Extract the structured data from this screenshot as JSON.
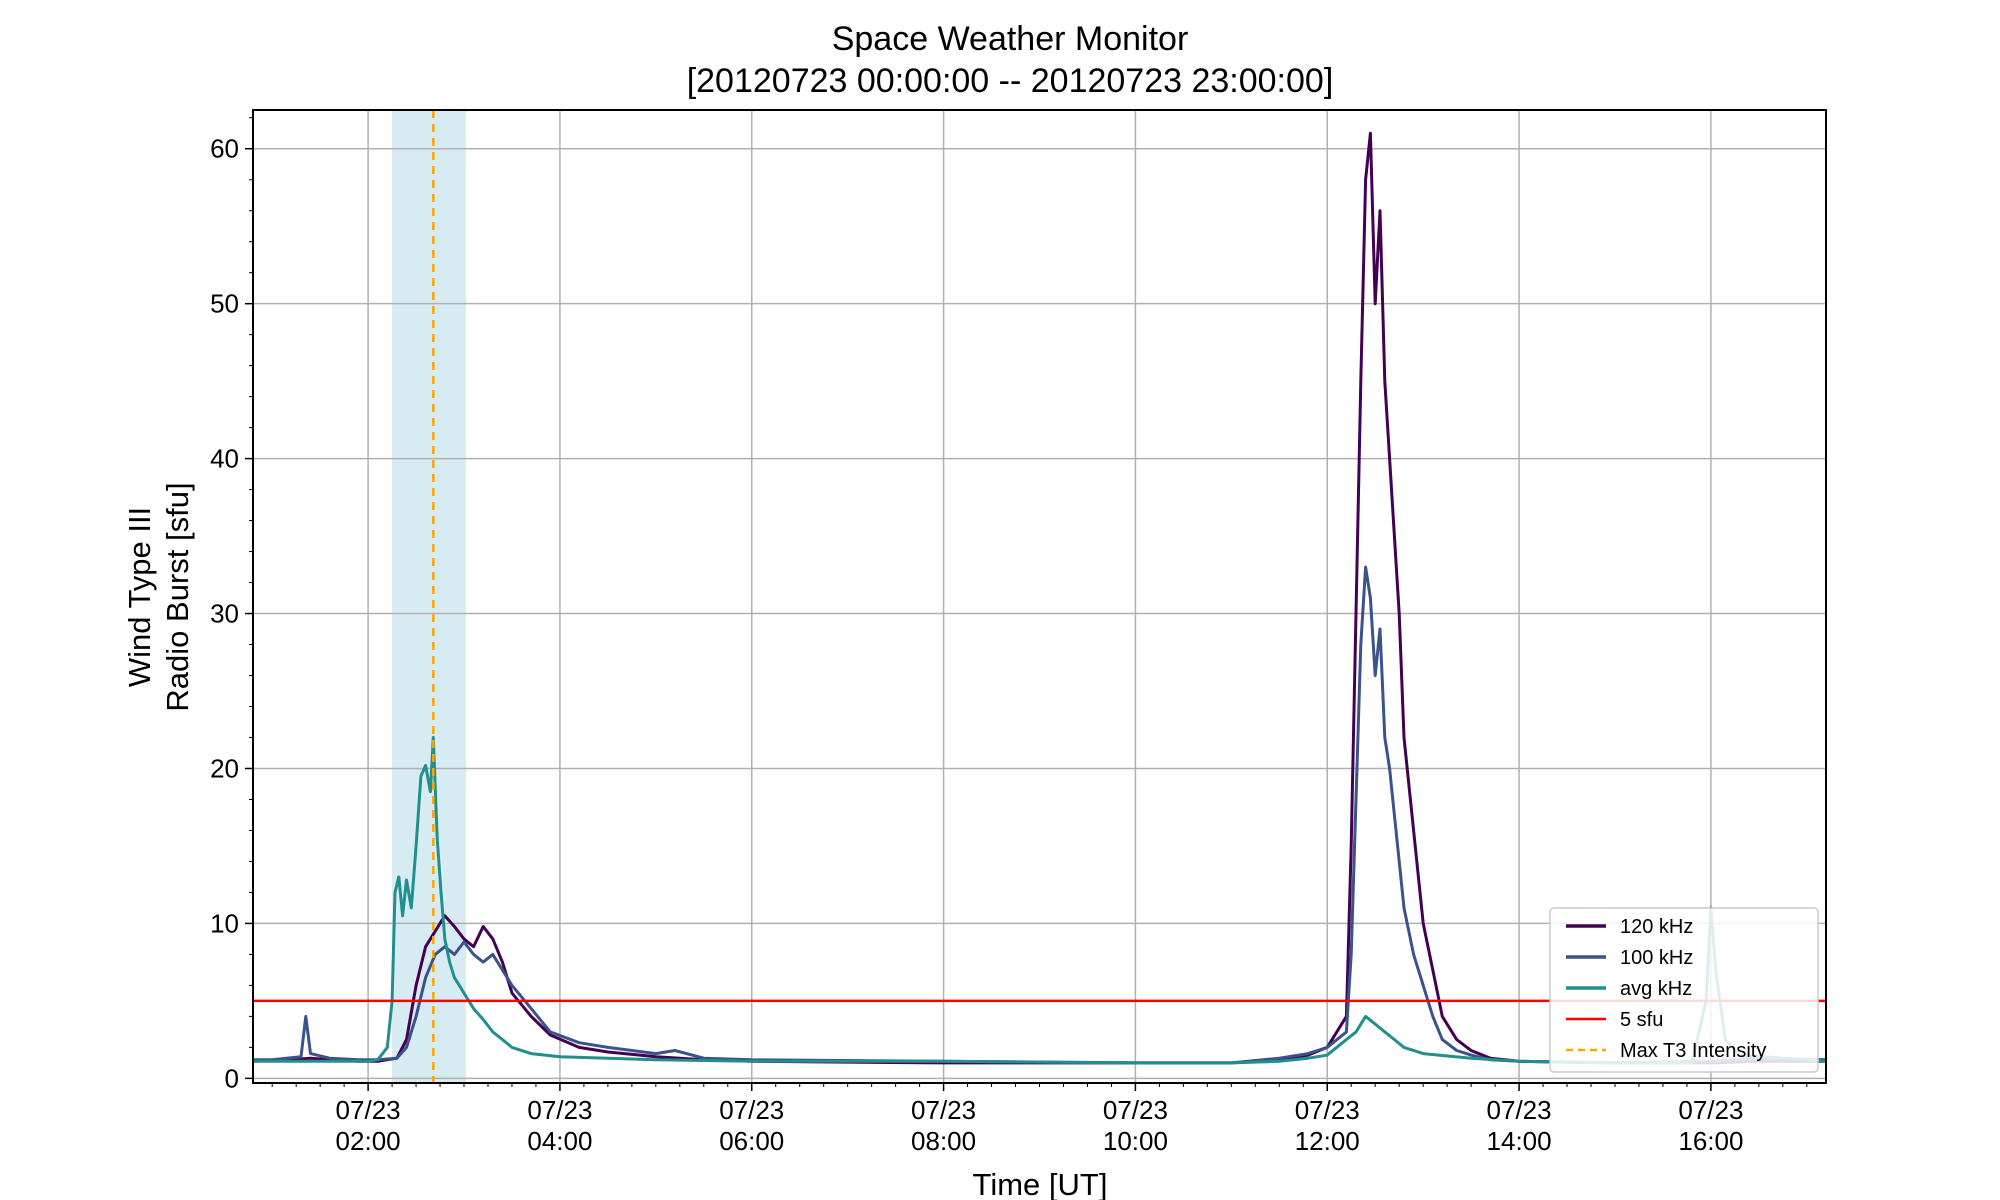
{
  "chart_data": {
    "type": "line",
    "title": "Space Weather Monitor",
    "subtitle": "[20120723 00:00:00 -- 20120723 23:00:00]",
    "xlabel": "Time [UT]",
    "ylabel_line1": "Wind Type III",
    "ylabel_line2": "Radio Burst [sfu]",
    "xlim_hours": [
      0.8,
      17.2
    ],
    "ylim": [
      -0.3,
      62.5
    ],
    "grid": true,
    "x_ticks": [
      {
        "hour": 2,
        "date": "07/23",
        "time": "02:00"
      },
      {
        "hour": 4,
        "date": "07/23",
        "time": "04:00"
      },
      {
        "hour": 6,
        "date": "07/23",
        "time": "06:00"
      },
      {
        "hour": 8,
        "date": "07/23",
        "time": "08:00"
      },
      {
        "hour": 10,
        "date": "07/23",
        "time": "10:00"
      },
      {
        "hour": 12,
        "date": "07/23",
        "time": "12:00"
      },
      {
        "hour": 14,
        "date": "07/23",
        "time": "14:00"
      },
      {
        "hour": 16,
        "date": "07/23",
        "time": "16:00"
      }
    ],
    "y_ticks": [
      0,
      10,
      20,
      30,
      40,
      50,
      60
    ],
    "shaded_region": {
      "x_start_hour": 2.25,
      "x_end_hour": 3.02,
      "color": "#add8e6"
    },
    "max_marker": {
      "x_hour": 2.68,
      "color": "#ffa500",
      "label": "Max T3 Intensity"
    },
    "threshold": {
      "y": 5,
      "color": "#ff0000",
      "label": "5 sfu"
    },
    "legend_location": "lower-right",
    "series": [
      {
        "name": "120 kHz",
        "color": "#440154",
        "x_hours": [
          0.8,
          1.2,
          1.4,
          1.6,
          1.9,
          2.1,
          2.3,
          2.4,
          2.5,
          2.6,
          2.7,
          2.8,
          2.9,
          3.0,
          3.1,
          3.2,
          3.3,
          3.4,
          3.5,
          3.7,
          3.9,
          4.2,
          4.5,
          5.0,
          5.5,
          6.0,
          8.0,
          10.0,
          11.0,
          11.5,
          11.8,
          12.0,
          12.2,
          12.25,
          12.3,
          12.35,
          12.4,
          12.45,
          12.5,
          12.55,
          12.6,
          12.65,
          12.7,
          12.75,
          12.8,
          12.9,
          13.0,
          13.1,
          13.2,
          13.35,
          13.5,
          13.7,
          14.0,
          15.0,
          16.0,
          16.5,
          17.2
        ],
        "values": [
          1.1,
          1.2,
          1.3,
          1.2,
          1.1,
          1.1,
          1.3,
          2.5,
          6.0,
          8.5,
          9.5,
          10.5,
          9.8,
          9.0,
          8.5,
          9.8,
          9.0,
          7.5,
          5.5,
          4.0,
          2.8,
          2.0,
          1.7,
          1.4,
          1.2,
          1.1,
          1.0,
          1.0,
          1.0,
          1.2,
          1.5,
          2.0,
          4.0,
          15.0,
          30.0,
          45.0,
          58.0,
          61.0,
          50.0,
          56.0,
          45.0,
          40.0,
          35.0,
          30.0,
          22.0,
          16.0,
          10.0,
          7.0,
          4.0,
          2.5,
          1.8,
          1.3,
          1.1,
          1.0,
          1.0,
          1.1,
          1.1
        ]
      },
      {
        "name": "100 kHz",
        "color": "#3b528b",
        "x_hours": [
          0.8,
          1.0,
          1.3,
          1.35,
          1.4,
          1.6,
          1.9,
          2.1,
          2.3,
          2.4,
          2.5,
          2.6,
          2.7,
          2.8,
          2.9,
          3.0,
          3.1,
          3.2,
          3.3,
          3.4,
          3.5,
          3.7,
          3.9,
          4.2,
          4.5,
          5.0,
          5.2,
          5.5,
          6.0,
          8.0,
          10.0,
          11.0,
          11.5,
          11.8,
          12.0,
          12.2,
          12.25,
          12.3,
          12.35,
          12.4,
          12.45,
          12.5,
          12.55,
          12.6,
          12.65,
          12.7,
          12.75,
          12.8,
          12.9,
          13.0,
          13.1,
          13.2,
          13.35,
          13.5,
          13.7,
          14.0,
          15.0,
          16.0,
          16.5,
          17.2
        ],
        "values": [
          1.2,
          1.2,
          1.4,
          4.0,
          1.6,
          1.3,
          1.2,
          1.2,
          1.3,
          2.0,
          4.0,
          6.5,
          8.0,
          8.5,
          8.0,
          8.8,
          8.0,
          7.5,
          8.0,
          7.0,
          6.0,
          4.5,
          3.0,
          2.3,
          2.0,
          1.6,
          1.8,
          1.3,
          1.2,
          1.1,
          1.0,
          1.0,
          1.3,
          1.6,
          2.0,
          3.0,
          8.0,
          18.0,
          28.0,
          33.0,
          31.0,
          26.0,
          29.0,
          22.0,
          20.0,
          17.0,
          14.0,
          11.0,
          8.0,
          6.0,
          4.0,
          2.5,
          1.8,
          1.5,
          1.2,
          1.1,
          1.0,
          1.1,
          1.3,
          1.2
        ]
      },
      {
        "name": "avg kHz",
        "color": "#21908d",
        "x_hours": [
          0.8,
          1.5,
          2.0,
          2.1,
          2.2,
          2.25,
          2.28,
          2.32,
          2.36,
          2.4,
          2.45,
          2.5,
          2.55,
          2.6,
          2.65,
          2.68,
          2.72,
          2.76,
          2.8,
          2.85,
          2.9,
          3.0,
          3.1,
          3.2,
          3.3,
          3.4,
          3.5,
          3.7,
          4.0,
          4.5,
          5.0,
          6.0,
          8.0,
          10.0,
          11.0,
          11.5,
          11.8,
          12.0,
          12.2,
          12.3,
          12.4,
          12.5,
          12.6,
          12.7,
          12.8,
          13.0,
          13.5,
          14.0,
          15.0,
          15.8,
          15.95,
          16.0,
          16.05,
          16.15,
          16.3,
          17.2
        ],
        "values": [
          1.1,
          1.1,
          1.1,
          1.2,
          2.0,
          5.0,
          12.0,
          13.0,
          10.5,
          12.8,
          11.0,
          15.0,
          19.5,
          20.2,
          18.5,
          22.0,
          15.5,
          12.0,
          9.0,
          7.5,
          6.5,
          5.5,
          4.5,
          3.8,
          3.0,
          2.5,
          2.0,
          1.6,
          1.4,
          1.3,
          1.2,
          1.1,
          1.1,
          1.0,
          1.0,
          1.1,
          1.3,
          1.5,
          2.5,
          3.0,
          4.0,
          3.5,
          3.0,
          2.5,
          2.0,
          1.6,
          1.3,
          1.1,
          1.0,
          1.0,
          5.0,
          11.0,
          7.0,
          2.5,
          1.5,
          1.1
        ]
      }
    ]
  }
}
